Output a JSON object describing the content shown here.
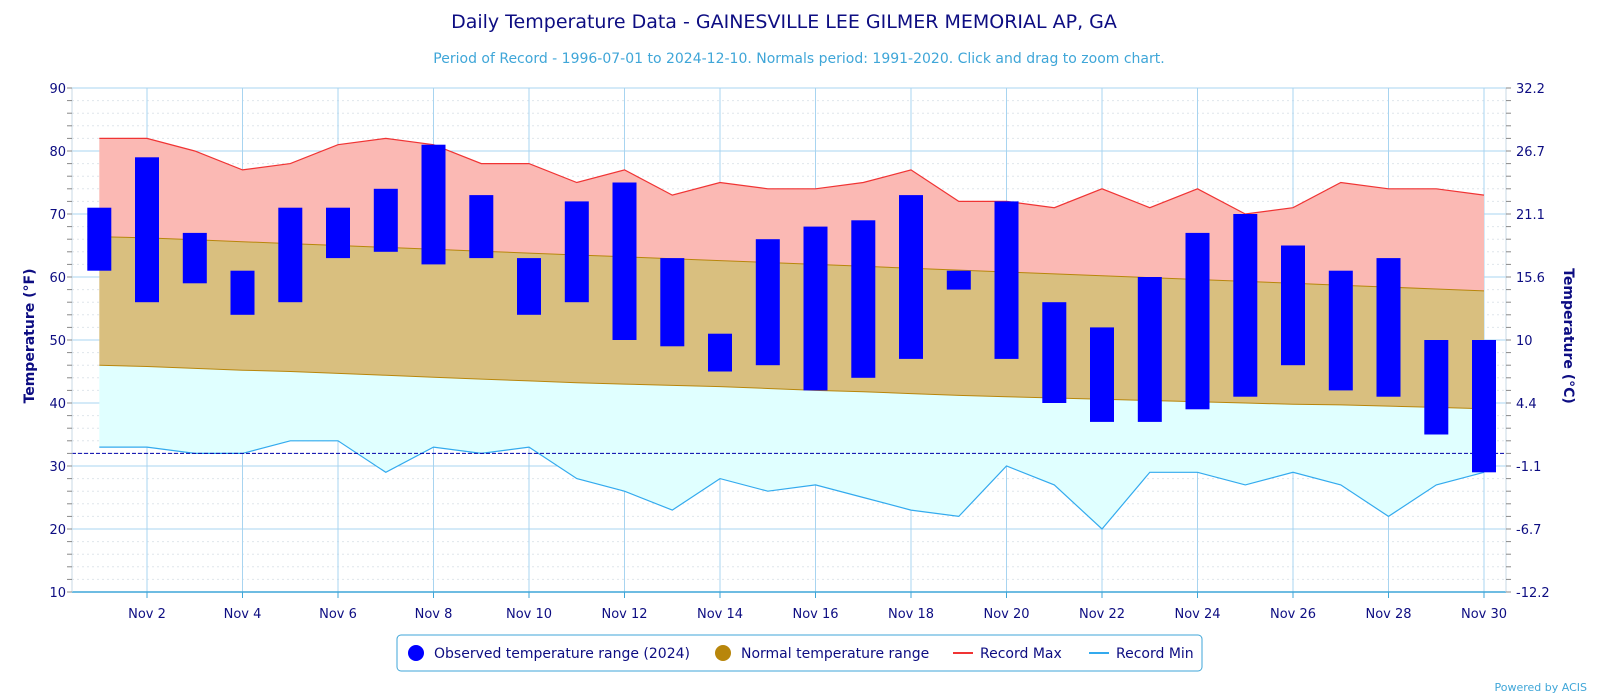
{
  "chart_data": {
    "type": "bar",
    "title": "Daily Temperature Data - GAINESVILLE LEE GILMER MEMORIAL AP, GA",
    "subtitle": "Period of Record - 1996-07-01 to 2024-12-10. Normals period: 1991-2020. Click and drag to zoom chart.",
    "ylabel": "Temperature (°F)",
    "ylabel_right": "Temperature (°C)",
    "ylim": [
      10,
      90
    ],
    "y_ticks": [
      "10",
      "20",
      "30",
      "40",
      "50",
      "60",
      "70",
      "80",
      "90"
    ],
    "y_ticks_right": [
      "-12.2",
      "-6.7",
      "-1.1",
      "4.4",
      "10",
      "15.6",
      "21.1",
      "26.7",
      "32.2"
    ],
    "x_tick_labels": [
      "Nov 2",
      "Nov 4",
      "Nov 6",
      "Nov 8",
      "Nov 10",
      "Nov 12",
      "Nov 14",
      "Nov 16",
      "Nov 18",
      "Nov 20",
      "Nov 22",
      "Nov 24",
      "Nov 26",
      "Nov 28",
      "Nov 30"
    ],
    "x_tick_days": [
      2,
      4,
      6,
      8,
      10,
      12,
      14,
      16,
      18,
      20,
      22,
      24,
      26,
      28,
      30
    ],
    "freezing_line": 32,
    "grid": true,
    "legend_position": "bottom-center",
    "days": [
      1,
      2,
      3,
      4,
      5,
      6,
      7,
      8,
      9,
      10,
      11,
      12,
      13,
      14,
      15,
      16,
      17,
      18,
      19,
      20,
      21,
      22,
      23,
      24,
      25,
      26,
      27,
      28,
      29,
      30
    ],
    "observed_max": [
      71,
      79,
      67,
      61,
      71,
      71,
      74,
      81,
      73,
      63,
      72,
      75,
      63,
      51,
      66,
      68,
      69,
      73,
      61,
      72,
      56,
      52,
      60,
      67,
      70,
      65,
      61,
      63,
      50,
      50
    ],
    "observed_min": [
      61,
      56,
      59,
      54,
      56,
      63,
      64,
      62,
      63,
      54,
      56,
      50,
      49,
      45,
      46,
      42,
      44,
      47,
      58,
      47,
      40,
      37,
      37,
      39,
      41,
      46,
      42,
      41,
      35,
      29
    ],
    "normal_max": [
      66.4,
      66.2,
      65.9,
      65.6,
      65.3,
      65.0,
      64.7,
      64.4,
      64.1,
      63.8,
      63.5,
      63.2,
      62.9,
      62.6,
      62.3,
      62.0,
      61.7,
      61.4,
      61.1,
      60.8,
      60.5,
      60.2,
      59.9,
      59.6,
      59.3,
      59.0,
      58.7,
      58.4,
      58.1,
      57.8
    ],
    "normal_min": [
      46.0,
      45.8,
      45.5,
      45.2,
      45.0,
      44.7,
      44.4,
      44.1,
      43.8,
      43.5,
      43.2,
      43.0,
      42.8,
      42.6,
      42.3,
      42.0,
      41.8,
      41.5,
      41.2,
      41.0,
      40.8,
      40.6,
      40.4,
      40.2,
      40.0,
      39.8,
      39.7,
      39.5,
      39.3,
      39.1
    ],
    "record_max": [
      82,
      82,
      80,
      77,
      78,
      81,
      82,
      81,
      78,
      78,
      75,
      77,
      73,
      75,
      74,
      74,
      75,
      77,
      72,
      72,
      71,
      74,
      71,
      74,
      70,
      71,
      75,
      74,
      74,
      73
    ],
    "record_min": [
      33,
      33,
      32,
      32,
      34,
      34,
      29,
      33,
      32,
      33,
      28,
      26,
      23,
      28,
      26,
      27,
      25,
      23,
      22,
      30,
      27,
      20,
      29,
      29,
      27,
      29,
      27,
      22,
      27,
      29
    ],
    "legend": {
      "observed": "Observed temperature range (2024)",
      "normal": "Normal temperature range",
      "record_max": "Record Max",
      "record_min": "Record Min"
    },
    "credit": "Powered by ACIS",
    "colors": {
      "observed": "#0000ff",
      "normal_fill": "#d9bf7f",
      "normal_line": "#b8860b",
      "record_max_line": "#f03434",
      "record_max_fill": "#fbb9b4",
      "record_min_line": "#33aaee",
      "record_min_fill": "#e0ffff",
      "grid": "#a8d4f0",
      "freezing": "#0000aa"
    }
  }
}
